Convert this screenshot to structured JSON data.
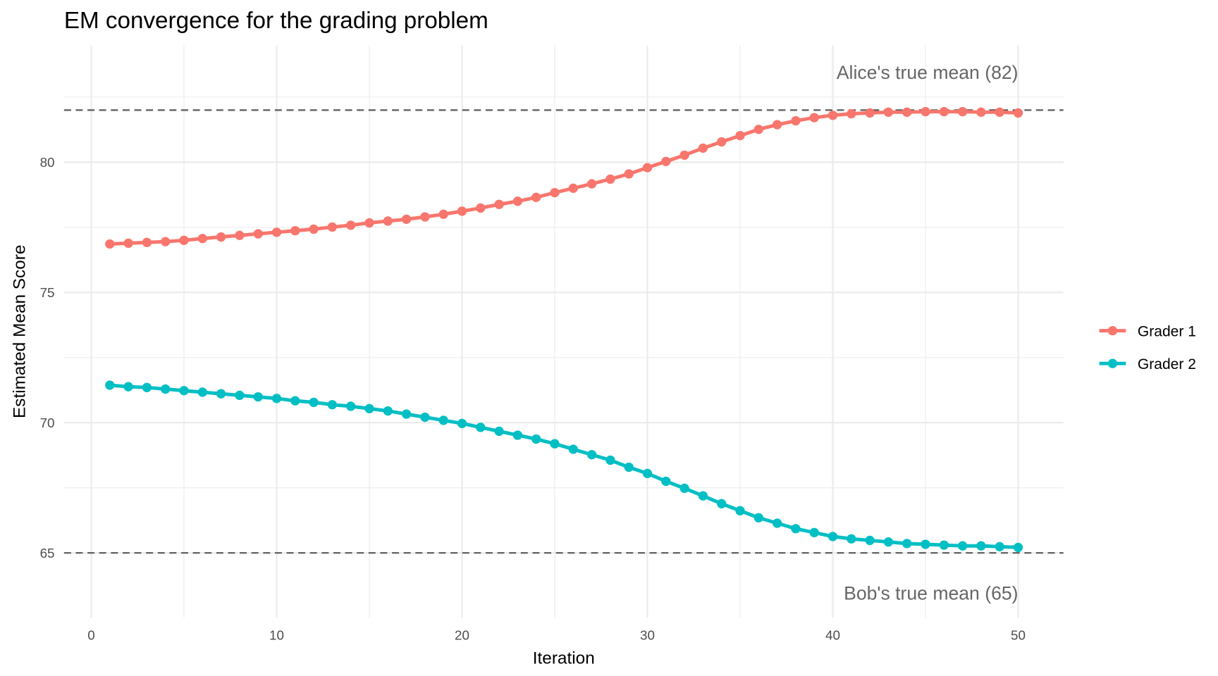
{
  "chart_data": {
    "type": "line",
    "title": "EM convergence for the grading problem",
    "x_label": "Iteration",
    "y_label": "Estimated Mean Score",
    "x": [
      1,
      2,
      3,
      4,
      5,
      6,
      7,
      8,
      9,
      10,
      11,
      12,
      13,
      14,
      15,
      16,
      17,
      18,
      19,
      20,
      21,
      22,
      23,
      24,
      25,
      26,
      27,
      28,
      29,
      30,
      31,
      32,
      33,
      34,
      35,
      36,
      37,
      38,
      39,
      40,
      41,
      42,
      43,
      44,
      45,
      46,
      47,
      48,
      49,
      50
    ],
    "series": [
      {
        "name": "Grader 1",
        "color": "#F8766D",
        "values": [
          76.86,
          76.89,
          76.92,
          76.95,
          77.0,
          77.07,
          77.13,
          77.19,
          77.25,
          77.31,
          77.37,
          77.43,
          77.51,
          77.58,
          77.67,
          77.74,
          77.81,
          77.9,
          78.0,
          78.12,
          78.24,
          78.38,
          78.5,
          78.65,
          78.83,
          79.0,
          79.17,
          79.35,
          79.55,
          79.79,
          80.03,
          80.27,
          80.54,
          80.78,
          81.02,
          81.26,
          81.44,
          81.59,
          81.71,
          81.8,
          81.86,
          81.89,
          81.92,
          81.92,
          81.94,
          81.94,
          81.94,
          81.92,
          81.92,
          81.89
        ]
      },
      {
        "name": "Grader 2",
        "color": "#00BFC4",
        "values": [
          71.44,
          71.38,
          71.35,
          71.29,
          71.23,
          71.17,
          71.11,
          71.05,
          70.99,
          70.93,
          70.84,
          70.78,
          70.69,
          70.63,
          70.54,
          70.45,
          70.33,
          70.21,
          70.09,
          69.97,
          69.82,
          69.67,
          69.52,
          69.37,
          69.19,
          68.98,
          68.77,
          68.56,
          68.29,
          68.05,
          67.75,
          67.48,
          67.19,
          66.89,
          66.62,
          66.35,
          66.14,
          65.93,
          65.78,
          65.63,
          65.54,
          65.48,
          65.42,
          65.36,
          65.33,
          65.3,
          65.27,
          65.27,
          65.24,
          65.21
        ]
      }
    ],
    "reference_lines": [
      {
        "value": 82,
        "label": "Alice's true mean (82)",
        "label_side": "above"
      },
      {
        "value": 65,
        "label": "Bob's true mean (65)",
        "label_side": "below"
      }
    ],
    "xlim": [
      -1.47,
      52.44
    ],
    "ylim": [
      62.51,
      84.49
    ],
    "xticks": [
      0,
      10,
      20,
      30,
      40,
      50
    ],
    "yticks": [
      65,
      70,
      75,
      80
    ],
    "grid": true,
    "legend": "right"
  }
}
